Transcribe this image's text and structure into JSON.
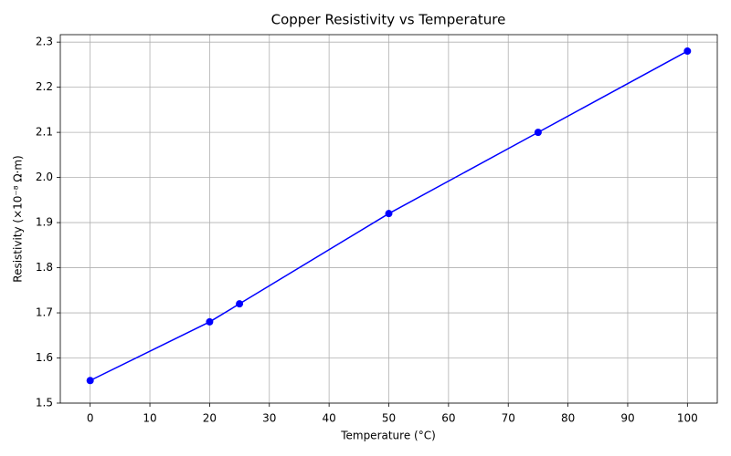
{
  "chart_data": {
    "type": "line",
    "title": "Copper Resistivity vs Temperature",
    "x_label": "Temperature (°C)",
    "y_label": "Resistivity (×10⁻⁸ Ω·m)",
    "x": [
      0,
      20,
      25,
      50,
      75,
      100
    ],
    "series": [
      {
        "name": "Copper",
        "color": "#0000ff",
        "values": [
          1.55,
          1.68,
          1.72,
          1.92,
          2.1,
          2.28
        ]
      }
    ],
    "xlim": [
      -5,
      105
    ],
    "xticks": [
      0,
      10,
      20,
      30,
      40,
      50,
      60,
      70,
      80,
      90,
      100
    ],
    "ylim": [
      1.5,
      2.3165
    ],
    "yticks": [
      1.5,
      1.6,
      1.7,
      1.8,
      1.9,
      {
        "value": 2,
        "label": "2.0"
      },
      2.1,
      2.2,
      2.3
    ],
    "grid": true,
    "marker": "circle"
  }
}
